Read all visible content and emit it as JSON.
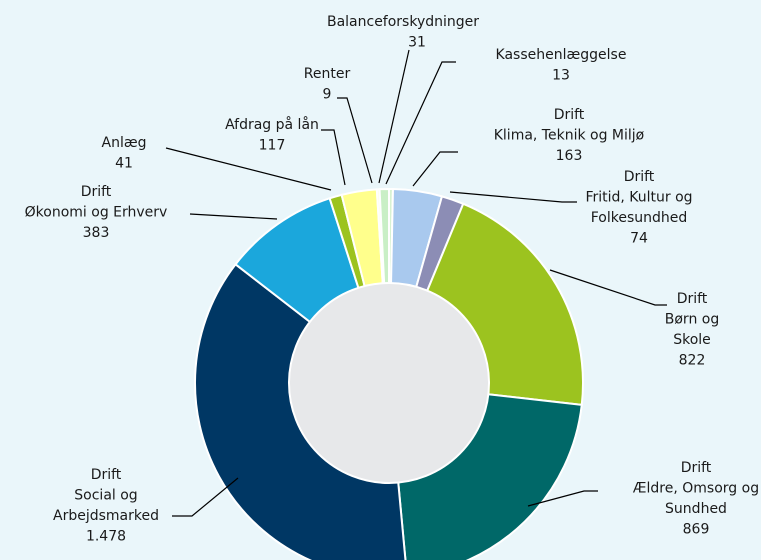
{
  "chart_data": {
    "type": "donut",
    "categories": [
      [
        "Kassehenlæggelse"
      ],
      [
        "Drift",
        "Klima, Teknik og Miljø"
      ],
      [
        "Drift",
        "Fritid, Kultur og",
        "Folkesundhed"
      ],
      [
        "Drift",
        "Børn og",
        "Skole"
      ],
      [
        "Drift",
        "Ældre, Omsorg og",
        "Sundhed"
      ],
      [
        "Drift",
        "Social og",
        "Arbejdsmarked"
      ],
      [
        "Drift",
        "Økonomi og Erhverv"
      ],
      [
        "Anlæg"
      ],
      [
        "Afdrag på lån"
      ],
      [
        "Renter"
      ],
      [
        "Balanceforskydninger"
      ]
    ],
    "values": [
      13,
      163,
      74,
      822,
      869,
      1478,
      383,
      41,
      117,
      9,
      31
    ],
    "value_labels": [
      "13",
      "163",
      "74",
      "822",
      "869",
      "1.478",
      "383",
      "41",
      "117",
      "9",
      "31"
    ],
    "colors": [
      "#d8f2d2",
      "#a9c9ee",
      "#8c8db5",
      "#9cc31f",
      "#006868",
      "#003764",
      "#1ba7dc",
      "#9cc31f",
      "#ffff8c",
      "#ffffe2",
      "#c9efc6"
    ]
  }
}
